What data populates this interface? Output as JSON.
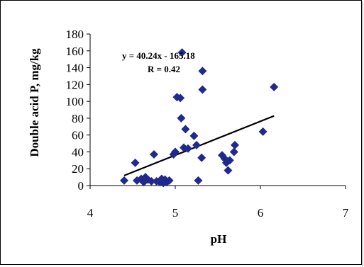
{
  "chart_data": {
    "type": "scatter",
    "title": "",
    "xlabel": "pH",
    "ylabel": "Double acid P, mg/kg",
    "xlim": [
      4,
      7
    ],
    "ylim": [
      0,
      180
    ],
    "x_ticks": [
      4,
      5,
      6,
      7
    ],
    "y_ticks": [
      0,
      20,
      40,
      60,
      80,
      100,
      120,
      140,
      160,
      180
    ],
    "x_tick_labels": [
      "4",
      "5",
      "6",
      "7"
    ],
    "y_tick_labels": [
      "0",
      "20",
      "40",
      "60",
      "80",
      "100",
      "120",
      "140",
      "160",
      "180"
    ],
    "grid": false,
    "marker": "diamond",
    "colors": {
      "marker": "#1f2a8c",
      "trendline": "#000000"
    },
    "points": [
      {
        "x": 4.4,
        "y": 6
      },
      {
        "x": 4.53,
        "y": 27
      },
      {
        "x": 4.55,
        "y": 6
      },
      {
        "x": 4.6,
        "y": 8
      },
      {
        "x": 4.63,
        "y": 4
      },
      {
        "x": 4.65,
        "y": 10
      },
      {
        "x": 4.68,
        "y": 7
      },
      {
        "x": 4.72,
        "y": 5
      },
      {
        "x": 4.75,
        "y": 37
      },
      {
        "x": 4.78,
        "y": 5
      },
      {
        "x": 4.82,
        "y": 4
      },
      {
        "x": 4.84,
        "y": 8
      },
      {
        "x": 4.86,
        "y": 3
      },
      {
        "x": 4.88,
        "y": 7
      },
      {
        "x": 4.9,
        "y": 4
      },
      {
        "x": 4.93,
        "y": 6
      },
      {
        "x": 4.98,
        "y": 37
      },
      {
        "x": 5.0,
        "y": 40
      },
      {
        "x": 5.02,
        "y": 105
      },
      {
        "x": 5.06,
        "y": 104
      },
      {
        "x": 5.07,
        "y": 80
      },
      {
        "x": 5.08,
        "y": 158
      },
      {
        "x": 5.1,
        "y": 45
      },
      {
        "x": 5.12,
        "y": 67
      },
      {
        "x": 5.15,
        "y": 44
      },
      {
        "x": 5.22,
        "y": 59
      },
      {
        "x": 5.25,
        "y": 48
      },
      {
        "x": 5.27,
        "y": 6
      },
      {
        "x": 5.31,
        "y": 33
      },
      {
        "x": 5.32,
        "y": 136
      },
      {
        "x": 5.32,
        "y": 114
      },
      {
        "x": 5.55,
        "y": 36
      },
      {
        "x": 5.58,
        "y": 32
      },
      {
        "x": 5.6,
        "y": 27
      },
      {
        "x": 5.62,
        "y": 18
      },
      {
        "x": 5.64,
        "y": 30
      },
      {
        "x": 5.69,
        "y": 40
      },
      {
        "x": 5.7,
        "y": 48
      },
      {
        "x": 6.03,
        "y": 64
      },
      {
        "x": 6.16,
        "y": 117
      }
    ],
    "trendline": {
      "type": "linear",
      "slope": 40.24,
      "intercept": -165.18,
      "x_range": [
        4.4,
        6.16
      ]
    },
    "annotations": [
      "y = 40.24x - 165.18",
      "R = 0.42"
    ]
  }
}
